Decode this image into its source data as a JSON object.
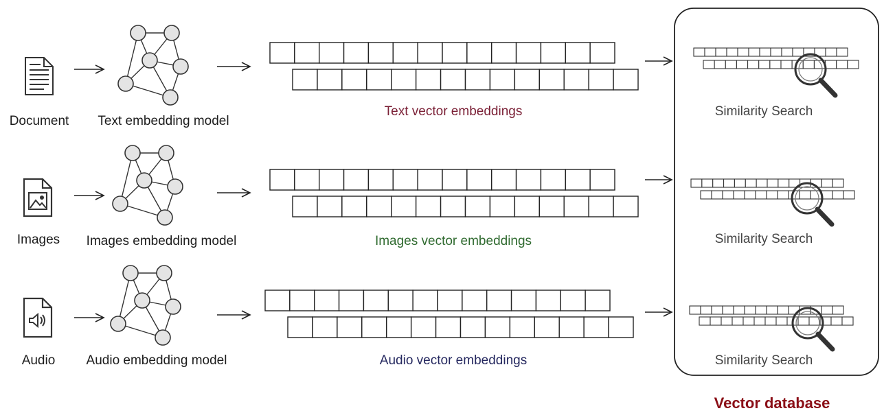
{
  "rows": [
    {
      "input_label": "Document",
      "input_icon": "document-icon",
      "model_label": "Text embedding model",
      "vector_label": "Text vector embeddings",
      "vector_color": "#7a1f35",
      "search_label": "Similarity Search"
    },
    {
      "input_label": "Images",
      "input_icon": "image-file-icon",
      "model_label": "Images embedding model",
      "vector_label": "Images vector embeddings",
      "vector_color": "#2f6a2f",
      "search_label": "Similarity Search"
    },
    {
      "input_label": "Audio",
      "input_icon": "audio-file-icon",
      "model_label": "Audio embedding model",
      "vector_label": "Audio vector embeddings",
      "vector_color": "#25285f",
      "search_label": "Similarity Search"
    }
  ],
  "database": {
    "title": "Vector database",
    "title_color": "#8b0f17"
  }
}
